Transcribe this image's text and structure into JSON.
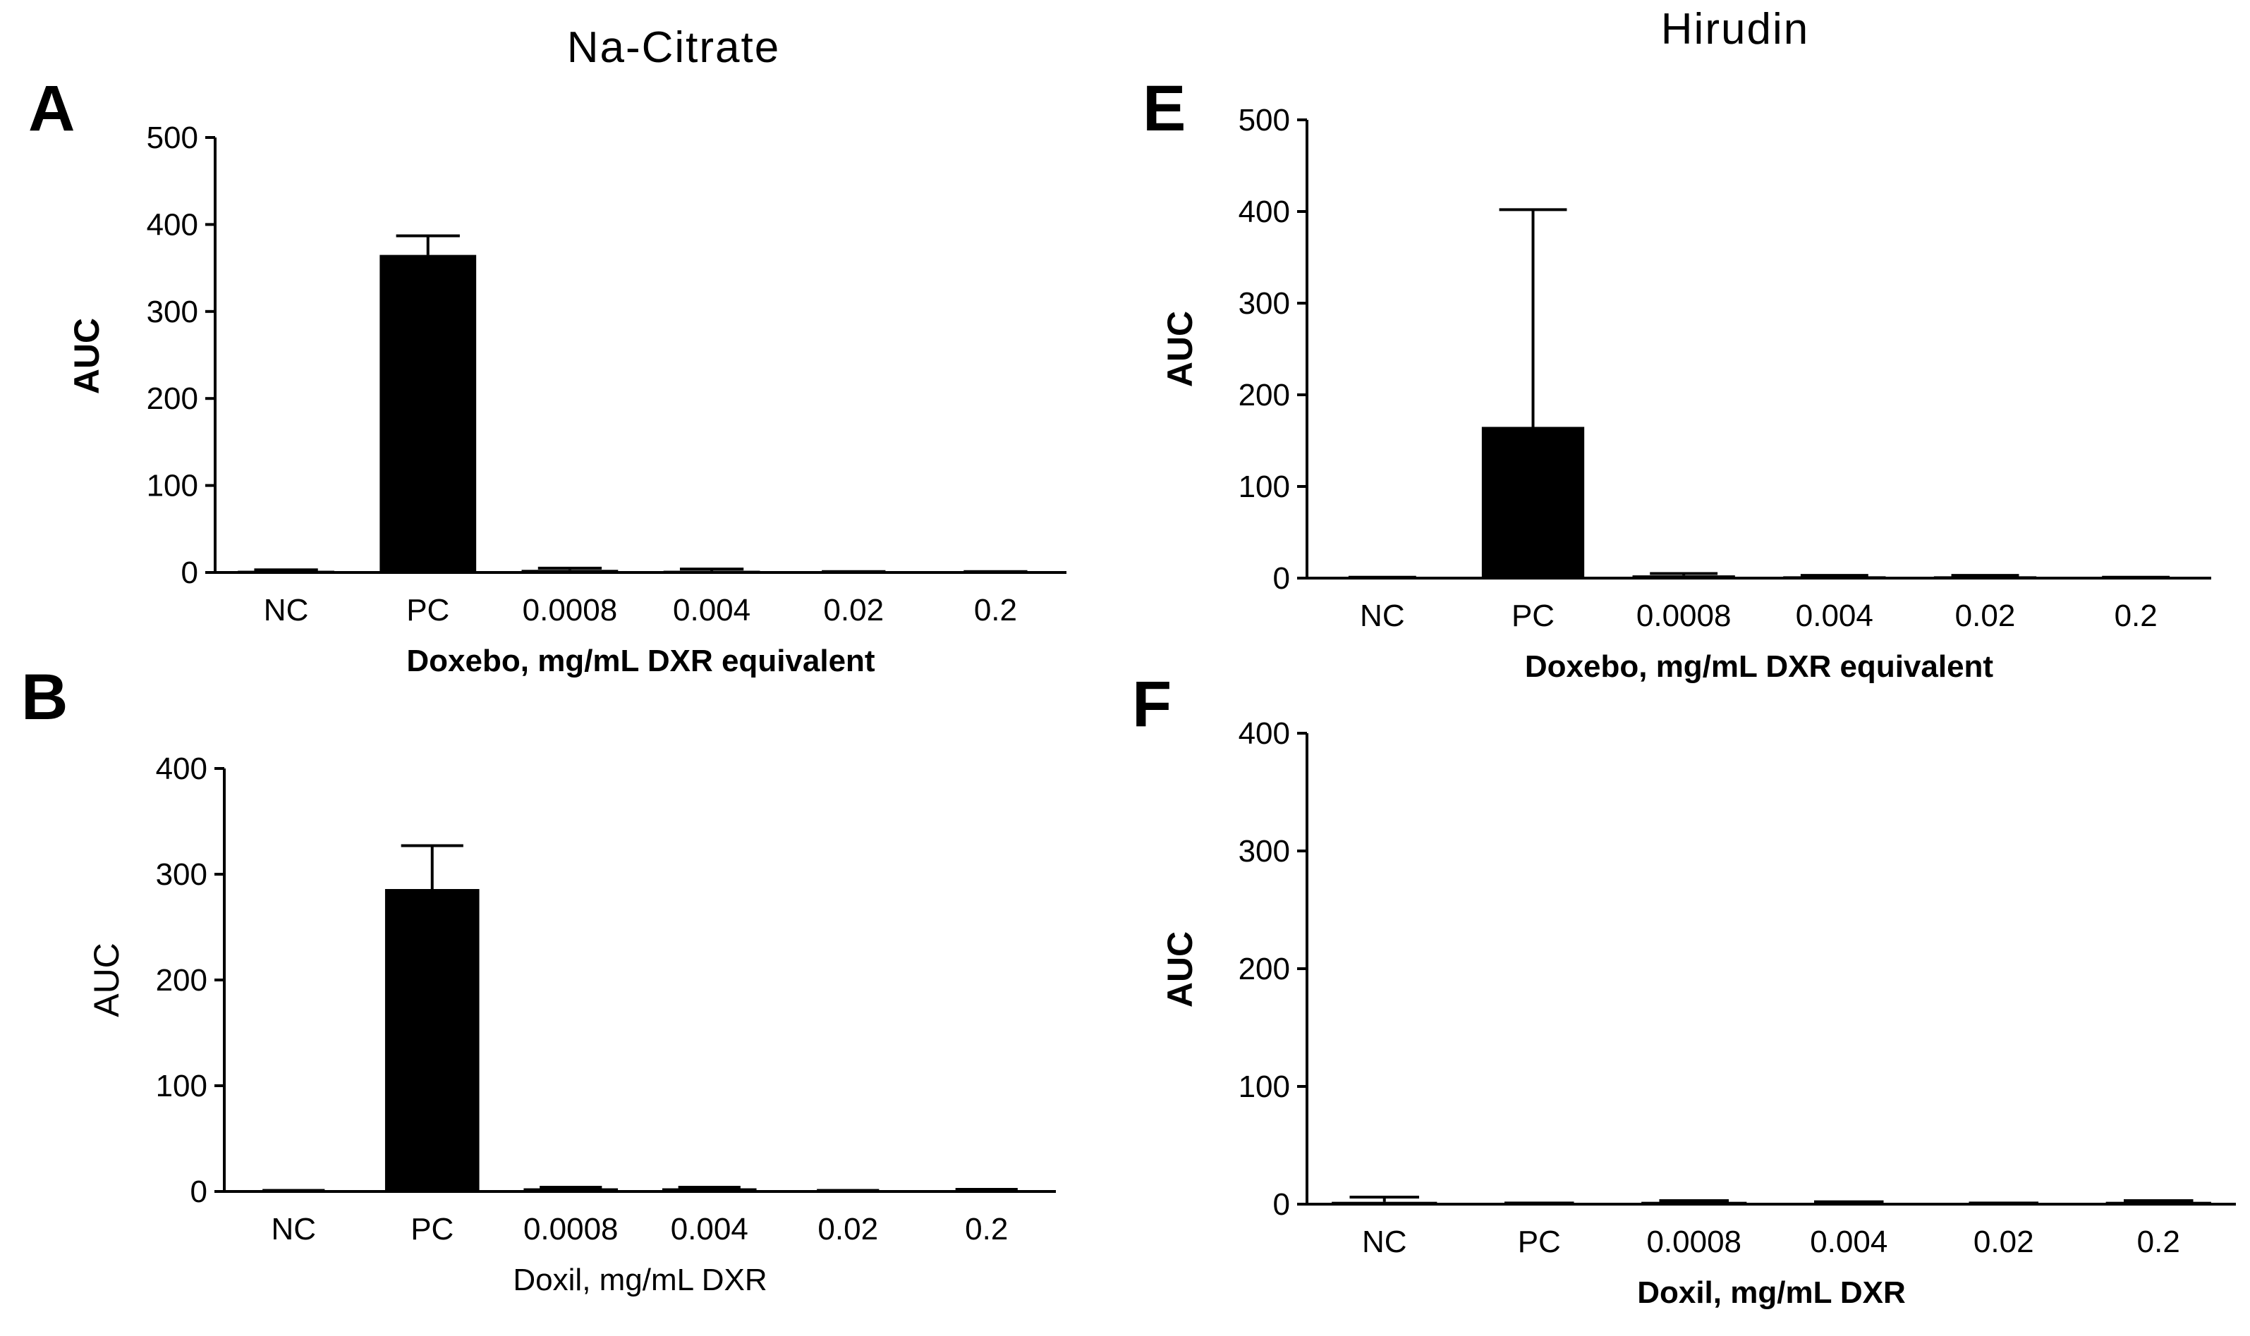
{
  "headings": {
    "left": "Na-Citrate",
    "right": "Hirudin"
  },
  "chart_data": [
    {
      "panel": "A",
      "type": "bar",
      "categories": [
        "NC",
        "PC",
        "0.0008",
        "0.004",
        "0.02",
        "0.2"
      ],
      "values": [
        2,
        365,
        3,
        2,
        1,
        1
      ],
      "errors": [
        1,
        22,
        2,
        2,
        0,
        0
      ],
      "xlabel": "Doxebo, mg/mL DXR equivalent",
      "ylabel": "AUC",
      "ylim": [
        0,
        500
      ],
      "yticks": [
        "0",
        "100",
        "200",
        "300",
        "400",
        "500"
      ],
      "ytick_values": [
        0,
        100,
        200,
        300,
        400,
        500
      ],
      "label_style": "bold"
    },
    {
      "panel": "B",
      "type": "bar",
      "categories": [
        "NC",
        "PC",
        "0.0008",
        "0.004",
        "0.02",
        "0.2"
      ],
      "values": [
        1,
        286,
        3,
        3,
        1,
        1
      ],
      "errors": [
        0,
        41,
        1,
        1,
        0,
        1
      ],
      "xlabel": "Doxil, mg/mL DXR",
      "ylabel": "AUC",
      "ylim": [
        0,
        400
      ],
      "yticks": [
        "0",
        "100",
        "200",
        "300",
        "400"
      ],
      "ytick_values": [
        0,
        100,
        200,
        300,
        400
      ],
      "label_style": "normal"
    },
    {
      "panel": "E",
      "type": "bar",
      "categories": [
        "NC",
        "PC",
        "0.0008",
        "0.004",
        "0.02",
        "0.2"
      ],
      "values": [
        1,
        165,
        3,
        2,
        2,
        1
      ],
      "errors": [
        0,
        237,
        2,
        1,
        1,
        0
      ],
      "xlabel": "Doxebo, mg/mL DXR equivalent",
      "ylabel": "AUC",
      "ylim": [
        0,
        500
      ],
      "yticks": [
        "0",
        "100",
        "200",
        "300",
        "400",
        "500"
      ],
      "ytick_values": [
        0,
        100,
        200,
        300,
        400,
        500
      ],
      "label_style": "bold"
    },
    {
      "panel": "F",
      "type": "bar",
      "categories": [
        "NC",
        "PC",
        "0.0008",
        "0.004",
        "0.02",
        "0.2"
      ],
      "values": [
        2,
        1,
        2,
        1,
        1,
        2
      ],
      "errors": [
        4,
        0,
        1,
        1,
        0,
        1
      ],
      "xlabel": "Doxil, mg/mL DXR",
      "ylabel": "AUC",
      "ylim": [
        0,
        400
      ],
      "yticks": [
        "0",
        "100",
        "200",
        "300",
        "400"
      ],
      "ytick_values": [
        0,
        100,
        200,
        300,
        400
      ],
      "label_style": "bold"
    }
  ]
}
